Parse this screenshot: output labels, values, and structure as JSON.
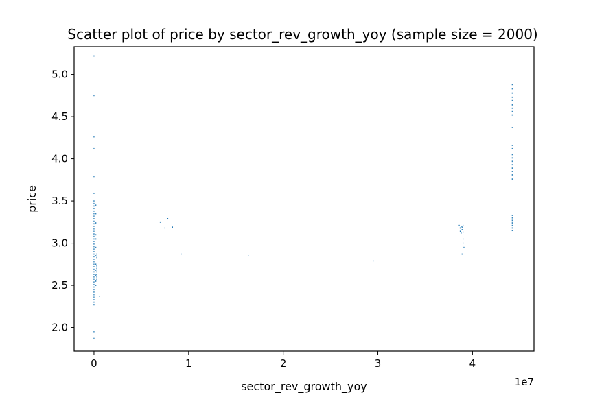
{
  "chart_data": {
    "type": "scatter",
    "title": "Scatter plot of price by sector_rev_growth_yoy (sample size = 2000)",
    "xlabel": "sector_rev_growth_yoy",
    "ylabel": "price",
    "x_offset_label": "1e7",
    "xlim": [
      -2100000,
      46500000
    ],
    "ylim": [
      1.72,
      5.33
    ],
    "x_ticks": [
      0,
      10000000,
      20000000,
      30000000,
      40000000
    ],
    "x_tick_labels": [
      "0",
      "1",
      "2",
      "3",
      "4"
    ],
    "y_ticks": [
      2.0,
      2.5,
      3.0,
      3.5,
      4.0,
      4.5,
      5.0
    ],
    "y_tick_labels": [
      "2.0",
      "2.5",
      "3.0",
      "3.5",
      "4.0",
      "4.5",
      "5.0"
    ],
    "grid": false,
    "marker_color": "#1f77b4",
    "points": [
      {
        "x": 0,
        "y": 5.22
      },
      {
        "x": 0,
        "y": 4.75
      },
      {
        "x": 0,
        "y": 4.26
      },
      {
        "x": 0,
        "y": 4.12
      },
      {
        "x": 0,
        "y": 3.79
      },
      {
        "x": 0,
        "y": 3.59
      },
      {
        "x": 0,
        "y": 3.5
      },
      {
        "x": 0,
        "y": 3.47
      },
      {
        "x": 0,
        "y": 3.44
      },
      {
        "x": 0,
        "y": 3.41
      },
      {
        "x": 0,
        "y": 3.38
      },
      {
        "x": 0,
        "y": 3.35
      },
      {
        "x": 0,
        "y": 3.32
      },
      {
        "x": 0,
        "y": 3.29
      },
      {
        "x": 0,
        "y": 3.26
      },
      {
        "x": 0,
        "y": 3.23
      },
      {
        "x": 0,
        "y": 3.2
      },
      {
        "x": 0,
        "y": 3.17
      },
      {
        "x": 0,
        "y": 3.14
      },
      {
        "x": 0,
        "y": 3.11
      },
      {
        "x": 0,
        "y": 3.08
      },
      {
        "x": 0,
        "y": 3.05
      },
      {
        "x": 0,
        "y": 3.02
      },
      {
        "x": 0,
        "y": 2.99
      },
      {
        "x": 0,
        "y": 2.96
      },
      {
        "x": 0,
        "y": 2.93
      },
      {
        "x": 0,
        "y": 2.9
      },
      {
        "x": 0,
        "y": 2.87
      },
      {
        "x": 0,
        "y": 2.84
      },
      {
        "x": 0,
        "y": 2.81
      },
      {
        "x": 0,
        "y": 2.78
      },
      {
        "x": 0,
        "y": 2.75
      },
      {
        "x": 0,
        "y": 2.72
      },
      {
        "x": 0,
        "y": 2.69
      },
      {
        "x": 0,
        "y": 2.66
      },
      {
        "x": 0,
        "y": 2.63
      },
      {
        "x": 0,
        "y": 2.6
      },
      {
        "x": 0,
        "y": 2.57
      },
      {
        "x": 0,
        "y": 2.54
      },
      {
        "x": 0,
        "y": 2.51
      },
      {
        "x": 0,
        "y": 2.48
      },
      {
        "x": 0,
        "y": 2.45
      },
      {
        "x": 0,
        "y": 2.42
      },
      {
        "x": 0,
        "y": 2.39
      },
      {
        "x": 0,
        "y": 2.36
      },
      {
        "x": 0,
        "y": 2.33
      },
      {
        "x": 0,
        "y": 2.3
      },
      {
        "x": 0,
        "y": 2.27
      },
      {
        "x": 0,
        "y": 1.95
      },
      {
        "x": 0,
        "y": 1.87
      },
      {
        "x": 200000,
        "y": 3.45
      },
      {
        "x": 200000,
        "y": 3.35
      },
      {
        "x": 200000,
        "y": 3.24
      },
      {
        "x": 200000,
        "y": 3.1
      },
      {
        "x": 200000,
        "y": 3.05
      },
      {
        "x": 200000,
        "y": 2.95
      },
      {
        "x": 200000,
        "y": 2.85
      },
      {
        "x": 200000,
        "y": 2.75
      },
      {
        "x": 200000,
        "y": 2.68
      },
      {
        "x": 200000,
        "y": 2.62
      },
      {
        "x": 200000,
        "y": 2.55
      },
      {
        "x": 200000,
        "y": 2.5
      },
      {
        "x": 300000,
        "y": 2.87
      },
      {
        "x": 300000,
        "y": 2.83
      },
      {
        "x": 300000,
        "y": 2.73
      },
      {
        "x": 300000,
        "y": 2.7
      },
      {
        "x": 300000,
        "y": 2.66
      },
      {
        "x": 300000,
        "y": 2.63
      },
      {
        "x": 300000,
        "y": 2.6
      },
      {
        "x": 300000,
        "y": 2.57
      },
      {
        "x": 600000,
        "y": 2.37
      },
      {
        "x": 7000000,
        "y": 3.25
      },
      {
        "x": 7500000,
        "y": 3.18
      },
      {
        "x": 7800000,
        "y": 3.29
      },
      {
        "x": 8300000,
        "y": 3.19
      },
      {
        "x": 9200000,
        "y": 2.87
      },
      {
        "x": 16300000,
        "y": 2.85
      },
      {
        "x": 29500000,
        "y": 2.79
      },
      {
        "x": 38600000,
        "y": 3.21
      },
      {
        "x": 38700000,
        "y": 3.18
      },
      {
        "x": 38700000,
        "y": 3.14
      },
      {
        "x": 38800000,
        "y": 3.2
      },
      {
        "x": 38800000,
        "y": 3.12
      },
      {
        "x": 38900000,
        "y": 3.19
      },
      {
        "x": 38900000,
        "y": 3.16
      },
      {
        "x": 38900000,
        "y": 2.87
      },
      {
        "x": 39000000,
        "y": 3.21
      },
      {
        "x": 39000000,
        "y": 3.13
      },
      {
        "x": 39000000,
        "y": 3.05
      },
      {
        "x": 39000000,
        "y": 3.0
      },
      {
        "x": 39100000,
        "y": 2.95
      },
      {
        "x": 44200000,
        "y": 4.88
      },
      {
        "x": 44200000,
        "y": 4.83
      },
      {
        "x": 44200000,
        "y": 4.78
      },
      {
        "x": 44200000,
        "y": 4.73
      },
      {
        "x": 44200000,
        "y": 4.69
      },
      {
        "x": 44200000,
        "y": 4.64
      },
      {
        "x": 44200000,
        "y": 4.6
      },
      {
        "x": 44200000,
        "y": 4.56
      },
      {
        "x": 44200000,
        "y": 4.52
      },
      {
        "x": 44200000,
        "y": 4.37
      },
      {
        "x": 44200000,
        "y": 4.16
      },
      {
        "x": 44200000,
        "y": 4.12
      },
      {
        "x": 44200000,
        "y": 4.05
      },
      {
        "x": 44200000,
        "y": 4.01
      },
      {
        "x": 44200000,
        "y": 3.97
      },
      {
        "x": 44200000,
        "y": 3.93
      },
      {
        "x": 44200000,
        "y": 3.89
      },
      {
        "x": 44200000,
        "y": 3.85
      },
      {
        "x": 44200000,
        "y": 3.81
      },
      {
        "x": 44200000,
        "y": 3.76
      },
      {
        "x": 44200000,
        "y": 3.33
      },
      {
        "x": 44200000,
        "y": 3.3
      },
      {
        "x": 44200000,
        "y": 3.27
      },
      {
        "x": 44200000,
        "y": 3.24
      },
      {
        "x": 44200000,
        "y": 3.21
      },
      {
        "x": 44200000,
        "y": 3.18
      },
      {
        "x": 44200000,
        "y": 3.15
      }
    ]
  }
}
